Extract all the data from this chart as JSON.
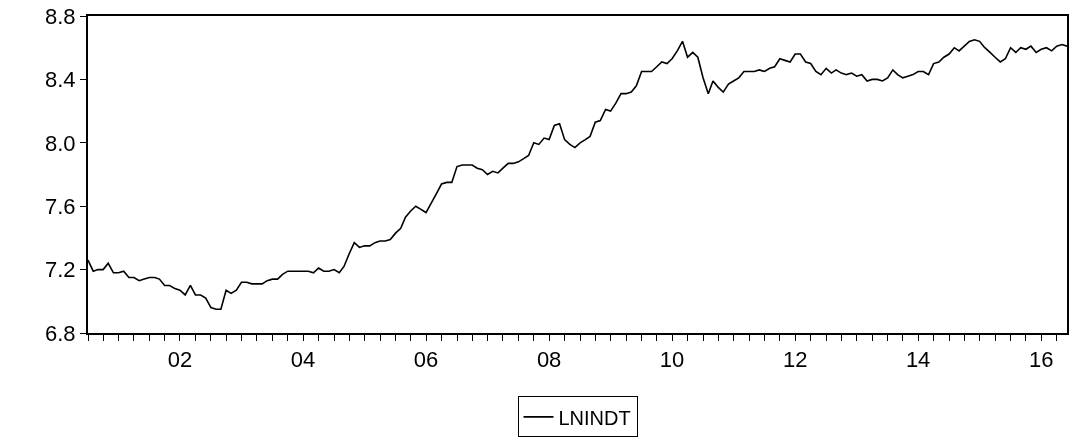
{
  "chart_data": {
    "type": "line",
    "legend": "bottom",
    "grid": false,
    "marker": "none",
    "line_style": "solid",
    "xlim": [
      "2001-01",
      "2016-12"
    ],
    "ylim": [
      6.8,
      8.8
    ],
    "yticks": [
      6.8,
      7.2,
      7.6,
      {
        "value": 8,
        "label": "8.0"
      },
      8.4,
      8.8
    ],
    "xticks": [
      {
        "value": "2001-01",
        "label": null
      },
      {
        "value": "2001-04",
        "label": null
      },
      {
        "value": "2001-07",
        "label": null
      },
      {
        "value": "2001-10",
        "label": null
      },
      {
        "value": "2002-01",
        "label": null
      },
      {
        "value": "2002-04",
        "label": null
      },
      {
        "value": "2002-07",
        "label": "02"
      },
      {
        "value": "2002-10",
        "label": null
      },
      {
        "value": "2003-01",
        "label": null
      },
      {
        "value": "2003-04",
        "label": null
      },
      {
        "value": "2003-07",
        "label": null
      },
      {
        "value": "2003-10",
        "label": null
      },
      {
        "value": "2004-01",
        "label": null
      },
      {
        "value": "2004-04",
        "label": null
      },
      {
        "value": "2004-07",
        "label": "04"
      },
      {
        "value": "2004-10",
        "label": null
      },
      {
        "value": "2005-01",
        "label": null
      },
      {
        "value": "2005-04",
        "label": null
      },
      {
        "value": "2005-07",
        "label": null
      },
      {
        "value": "2005-10",
        "label": null
      },
      {
        "value": "2006-01",
        "label": null
      },
      {
        "value": "2006-04",
        "label": null
      },
      {
        "value": "2006-07",
        "label": "06"
      },
      {
        "value": "2006-10",
        "label": null
      },
      {
        "value": "2007-01",
        "label": null
      },
      {
        "value": "2007-04",
        "label": null
      },
      {
        "value": "2007-07",
        "label": null
      },
      {
        "value": "2007-10",
        "label": null
      },
      {
        "value": "2008-01",
        "label": null
      },
      {
        "value": "2008-04",
        "label": null
      },
      {
        "value": "2008-07",
        "label": "08"
      },
      {
        "value": "2008-10",
        "label": null
      },
      {
        "value": "2009-01",
        "label": null
      },
      {
        "value": "2009-04",
        "label": null
      },
      {
        "value": "2009-07",
        "label": null
      },
      {
        "value": "2009-10",
        "label": null
      },
      {
        "value": "2010-01",
        "label": null
      },
      {
        "value": "2010-04",
        "label": null
      },
      {
        "value": "2010-07",
        "label": "10"
      },
      {
        "value": "2010-10",
        "label": null
      },
      {
        "value": "2011-01",
        "label": null
      },
      {
        "value": "2011-04",
        "label": null
      },
      {
        "value": "2011-07",
        "label": null
      },
      {
        "value": "2011-10",
        "label": null
      },
      {
        "value": "2012-01",
        "label": null
      },
      {
        "value": "2012-04",
        "label": null
      },
      {
        "value": "2012-07",
        "label": "12"
      },
      {
        "value": "2012-10",
        "label": null
      },
      {
        "value": "2013-01",
        "label": null
      },
      {
        "value": "2013-04",
        "label": null
      },
      {
        "value": "2013-07",
        "label": null
      },
      {
        "value": "2013-10",
        "label": null
      },
      {
        "value": "2014-01",
        "label": null
      },
      {
        "value": "2014-04",
        "label": null
      },
      {
        "value": "2014-07",
        "label": "14"
      },
      {
        "value": "2014-10",
        "label": null
      },
      {
        "value": "2015-01",
        "label": null
      },
      {
        "value": "2015-04",
        "label": null
      },
      {
        "value": "2015-07",
        "label": null
      },
      {
        "value": "2015-10",
        "label": null
      },
      {
        "value": "2016-01",
        "label": null
      },
      {
        "value": "2016-04",
        "label": null
      },
      {
        "value": "2016-07",
        "label": "16"
      },
      {
        "value": "2016-10",
        "label": null
      }
    ],
    "x": [
      "2001-01",
      "2001-02",
      "2001-03",
      "2001-04",
      "2001-05",
      "2001-06",
      "2001-07",
      "2001-08",
      "2001-09",
      "2001-10",
      "2001-11",
      "2001-12",
      "2002-01",
      "2002-02",
      "2002-03",
      "2002-04",
      "2002-05",
      "2002-06",
      "2002-07",
      "2002-08",
      "2002-09",
      "2002-10",
      "2002-11",
      "2002-12",
      "2003-01",
      "2003-02",
      "2003-03",
      "2003-04",
      "2003-05",
      "2003-06",
      "2003-07",
      "2003-08",
      "2003-09",
      "2003-10",
      "2003-11",
      "2003-12",
      "2004-01",
      "2004-02",
      "2004-03",
      "2004-04",
      "2004-05",
      "2004-06",
      "2004-07",
      "2004-08",
      "2004-09",
      "2004-10",
      "2004-11",
      "2004-12",
      "2005-01",
      "2005-02",
      "2005-03",
      "2005-04",
      "2005-05",
      "2005-06",
      "2005-07",
      "2005-08",
      "2005-09",
      "2005-10",
      "2005-11",
      "2005-12",
      "2006-01",
      "2006-02",
      "2006-03",
      "2006-04",
      "2006-05",
      "2006-06",
      "2006-07",
      "2006-08",
      "2006-09",
      "2006-10",
      "2006-11",
      "2006-12",
      "2007-01",
      "2007-02",
      "2007-03",
      "2007-04",
      "2007-05",
      "2007-06",
      "2007-07",
      "2007-08",
      "2007-09",
      "2007-10",
      "2007-11",
      "2007-12",
      "2008-01",
      "2008-02",
      "2008-03",
      "2008-04",
      "2008-05",
      "2008-06",
      "2008-07",
      "2008-08",
      "2008-09",
      "2008-10",
      "2008-11",
      "2008-12",
      "2009-01",
      "2009-02",
      "2009-03",
      "2009-04",
      "2009-05",
      "2009-06",
      "2009-07",
      "2009-08",
      "2009-09",
      "2009-10",
      "2009-11",
      "2009-12",
      "2010-01",
      "2010-02",
      "2010-03",
      "2010-04",
      "2010-05",
      "2010-06",
      "2010-07",
      "2010-08",
      "2010-09",
      "2010-10",
      "2010-11",
      "2010-12",
      "2011-01",
      "2011-02",
      "2011-03",
      "2011-04",
      "2011-05",
      "2011-06",
      "2011-07",
      "2011-08",
      "2011-09",
      "2011-10",
      "2011-11",
      "2011-12",
      "2012-01",
      "2012-02",
      "2012-03",
      "2012-04",
      "2012-05",
      "2012-06",
      "2012-07",
      "2012-08",
      "2012-09",
      "2012-10",
      "2012-11",
      "2012-12",
      "2013-01",
      "2013-02",
      "2013-03",
      "2013-04",
      "2013-05",
      "2013-06",
      "2013-07",
      "2013-08",
      "2013-09",
      "2013-10",
      "2013-11",
      "2013-12",
      "2014-01",
      "2014-02",
      "2014-03",
      "2014-04",
      "2014-05",
      "2014-06",
      "2014-07",
      "2014-08",
      "2014-09",
      "2014-10",
      "2014-11",
      "2014-12",
      "2015-01",
      "2015-02",
      "2015-03",
      "2015-04",
      "2015-05",
      "2015-06",
      "2015-07",
      "2015-08",
      "2015-09",
      "2015-10",
      "2015-11",
      "2015-12",
      "2016-01",
      "2016-02",
      "2016-03",
      "2016-04",
      "2016-05",
      "2016-06",
      "2016-07",
      "2016-08",
      "2016-09",
      "2016-10",
      "2016-11",
      "2016-12"
    ],
    "series": [
      {
        "name": "LNINDT",
        "color": "#000000",
        "values": [
          7.26,
          7.19,
          7.2,
          7.2,
          7.24,
          7.18,
          7.18,
          7.19,
          7.15,
          7.15,
          7.13,
          7.14,
          7.15,
          7.15,
          7.14,
          7.1,
          7.1,
          7.08,
          7.07,
          7.04,
          7.1,
          7.04,
          7.04,
          7.02,
          6.96,
          6.95,
          6.95,
          7.07,
          7.05,
          7.07,
          7.12,
          7.12,
          7.11,
          7.11,
          7.11,
          7.13,
          7.14,
          7.14,
          7.17,
          7.19,
          7.19,
          7.19,
          7.19,
          7.19,
          7.18,
          7.21,
          7.19,
          7.19,
          7.2,
          7.18,
          7.22,
          7.3,
          7.37,
          7.34,
          7.35,
          7.35,
          7.37,
          7.38,
          7.38,
          7.39,
          7.43,
          7.46,
          7.53,
          7.57,
          7.6,
          7.58,
          7.56,
          7.62,
          7.68,
          7.74,
          7.75,
          7.75,
          7.85,
          7.86,
          7.86,
          7.86,
          7.84,
          7.83,
          7.8,
          7.82,
          7.81,
          7.84,
          7.87,
          7.87,
          7.88,
          7.9,
          7.92,
          8.0,
          7.99,
          8.03,
          8.02,
          8.11,
          8.12,
          8.02,
          7.99,
          7.97,
          8.0,
          8.02,
          8.04,
          8.13,
          8.14,
          8.21,
          8.2,
          8.25,
          8.31,
          8.31,
          8.32,
          8.36,
          8.45,
          8.45,
          8.45,
          8.48,
          8.51,
          8.5,
          8.53,
          8.58,
          8.64,
          8.54,
          8.57,
          8.54,
          8.41,
          8.31,
          8.39,
          8.35,
          8.32,
          8.37,
          8.39,
          8.41,
          8.45,
          8.45,
          8.45,
          8.46,
          8.45,
          8.47,
          8.48,
          8.53,
          8.52,
          8.51,
          8.56,
          8.56,
          8.51,
          8.5,
          8.45,
          8.43,
          8.47,
          8.44,
          8.46,
          8.44,
          8.43,
          8.44,
          8.42,
          8.43,
          8.39,
          8.4,
          8.4,
          8.39,
          8.41,
          8.46,
          8.43,
          8.41,
          8.42,
          8.43,
          8.45,
          8.45,
          8.43,
          8.5,
          8.51,
          8.54,
          8.56,
          8.6,
          8.58,
          8.61,
          8.64,
          8.65,
          8.64,
          8.6,
          8.57,
          8.54,
          8.51,
          8.53,
          8.6,
          8.57,
          8.6,
          8.59,
          8.61,
          8.57,
          8.59,
          8.6,
          8.58,
          8.61,
          8.62,
          8.61
        ]
      }
    ]
  }
}
